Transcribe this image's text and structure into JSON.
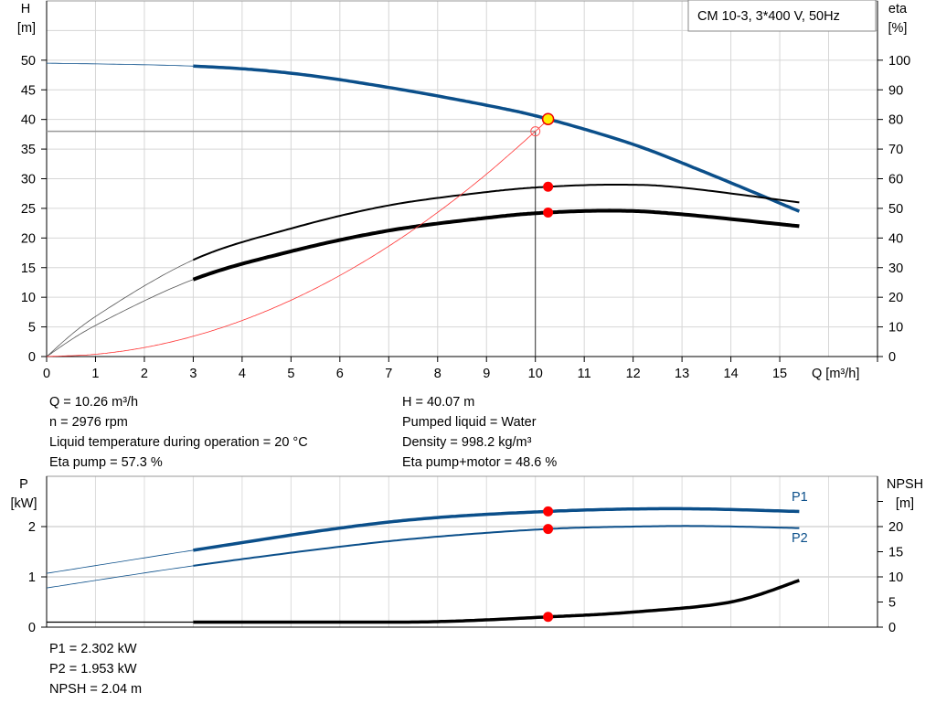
{
  "chart_data": [
    {
      "type": "line",
      "title": "CM 10-3, 3*400 V, 50Hz",
      "xlabel": "Q [m³/h]",
      "ylabel_left": [
        "H",
        "[m]"
      ],
      "ylabel_right": [
        "eta",
        "[%]"
      ],
      "xlim": [
        0,
        17
      ],
      "ylim_left": [
        0,
        60
      ],
      "ylim_right": [
        0,
        120
      ],
      "x_ticks": [
        0,
        1,
        2,
        3,
        4,
        5,
        6,
        7,
        8,
        9,
        10,
        11,
        12,
        13,
        14,
        15
      ],
      "y_ticks_left": [
        0,
        5,
        10,
        15,
        20,
        25,
        30,
        35,
        40,
        45,
        50
      ],
      "y_ticks_right": [
        0,
        10,
        20,
        30,
        40,
        50,
        60,
        70,
        80,
        90,
        100
      ],
      "grid": true,
      "legend": "top-right",
      "series": [
        {
          "key": "H",
          "axis": "left",
          "color": "#0b4f8a",
          "operating_range": [
            3,
            15.4
          ],
          "x": [
            0,
            3,
            5,
            7,
            9,
            10.26,
            12,
            13.5,
            15.4
          ],
          "y": [
            49.5,
            49.0,
            47.8,
            45.4,
            42.4,
            40.07,
            35.8,
            31.0,
            24.5
          ]
        },
        {
          "key": "eta_pump",
          "axis": "right",
          "color": "#000000",
          "operating_range": [
            3,
            15.4
          ],
          "x": [
            0,
            1,
            3,
            5,
            7,
            9,
            10.26,
            11.7,
            13,
            15.4
          ],
          "y": [
            0,
            13.5,
            32.6,
            43.2,
            51,
            55.5,
            57.3,
            58,
            57,
            52
          ]
        },
        {
          "key": "eta_pump_motor",
          "axis": "right",
          "color": "#000000",
          "operating_range": [
            3,
            15.4
          ],
          "x": [
            0,
            1,
            3,
            5,
            7,
            9,
            10.26,
            11.7,
            13,
            15.4
          ],
          "y": [
            0,
            10.5,
            26,
            35.5,
            42.5,
            46.8,
            48.6,
            49.2,
            48,
            44
          ]
        },
        {
          "key": "system_curve",
          "axis": "left",
          "color": "#ff3333",
          "x": [
            0,
            1,
            2,
            3,
            4,
            5,
            6,
            7,
            8,
            9,
            10,
            10.26
          ],
          "y": [
            0,
            0.38,
            1.52,
            3.42,
            6.08,
            9.5,
            13.68,
            18.62,
            24.32,
            30.78,
            38,
            40.07
          ]
        }
      ],
      "duty_point": {
        "Q": 10.26,
        "H": 40.07,
        "eta_pump": 57.3,
        "eta_pump_motor": 48.6
      },
      "requested_point": {
        "Q": 10,
        "H": 38
      }
    },
    {
      "type": "line",
      "ylabel_left": [
        "P",
        "[kW]"
      ],
      "ylabel_right": [
        "NPSH",
        "[m]"
      ],
      "xlim": [
        0,
        17
      ],
      "ylim_left": [
        0,
        3
      ],
      "ylim_right": [
        0,
        30
      ],
      "y_ticks_left": [
        0,
        1,
        2
      ],
      "y_ticks_right": [
        0,
        5,
        10,
        15,
        20
      ],
      "grid": true,
      "series": [
        {
          "name": "P1",
          "axis": "left",
          "color": "#0b4f8a",
          "operating_range": [
            3,
            15.4
          ],
          "x": [
            0,
            3,
            6,
            8,
            10.26,
            12,
            13.5,
            15.4
          ],
          "y": [
            1.07,
            1.53,
            1.97,
            2.18,
            2.302,
            2.35,
            2.35,
            2.3
          ]
        },
        {
          "name": "P2",
          "axis": "left",
          "color": "#0b4f8a",
          "operating_range": [
            3,
            15.4
          ],
          "x": [
            0,
            3,
            6,
            8,
            10.26,
            12,
            13.5,
            15.4
          ],
          "y": [
            0.78,
            1.22,
            1.6,
            1.8,
            1.953,
            2.0,
            2.01,
            1.97
          ]
        },
        {
          "key": "NPSH",
          "axis": "right",
          "color": "#000000",
          "operating_range": [
            3,
            15.4
          ],
          "x": [
            0,
            3,
            6,
            8,
            10.26,
            12,
            14,
            15.4
          ],
          "y": [
            1,
            1,
            1,
            1.1,
            2.04,
            3.0,
            5.0,
            9.3
          ]
        }
      ],
      "duty_point": {
        "Q": 10.26,
        "P1": 2.302,
        "P2": 1.953,
        "NPSH": 2.04
      }
    }
  ],
  "info_left": [
    "Q = 10.26 m³/h",
    "n = 2976 rpm",
    "Liquid temperature during operation = 20 °C",
    "Eta pump = 57.3 %"
  ],
  "info_right": [
    "H = 40.07 m",
    "Pumped liquid = Water",
    "Density = 998.2 kg/m³",
    "Eta pump+motor = 48.6 %"
  ],
  "info_bottom": [
    "P1 = 2.302 kW",
    "P2 = 1.953 kW",
    "NPSH = 2.04 m"
  ]
}
